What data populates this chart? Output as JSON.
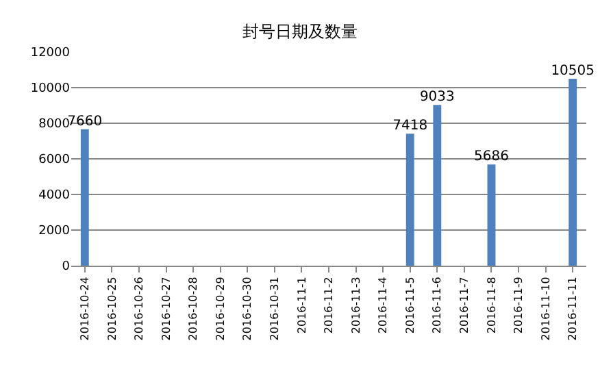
{
  "chart_data": {
    "type": "bar",
    "title": "封号日期及数量",
    "categories": [
      "2016-10-24",
      "2016-10-25",
      "2016-10-26",
      "2016-10-27",
      "2016-10-28",
      "2016-10-29",
      "2016-10-30",
      "2016-10-31",
      "2016-11-1",
      "2016-11-2",
      "2016-11-3",
      "2016-11-4",
      "2016-11-5",
      "2016-11-6",
      "2016-11-7",
      "2016-11-8",
      "2016-11-9",
      "2016-11-10",
      "2016-11-11"
    ],
    "values": [
      7660,
      null,
      null,
      null,
      null,
      null,
      null,
      null,
      null,
      null,
      null,
      null,
      7418,
      9033,
      null,
      5686,
      null,
      null,
      10505
    ],
    "color": "#4f81bd",
    "ylim": [
      0,
      12000
    ],
    "yticks": [
      0,
      2000,
      4000,
      6000,
      8000,
      10000,
      12000
    ],
    "grid": "y",
    "data_labels": true,
    "legend": false
  }
}
